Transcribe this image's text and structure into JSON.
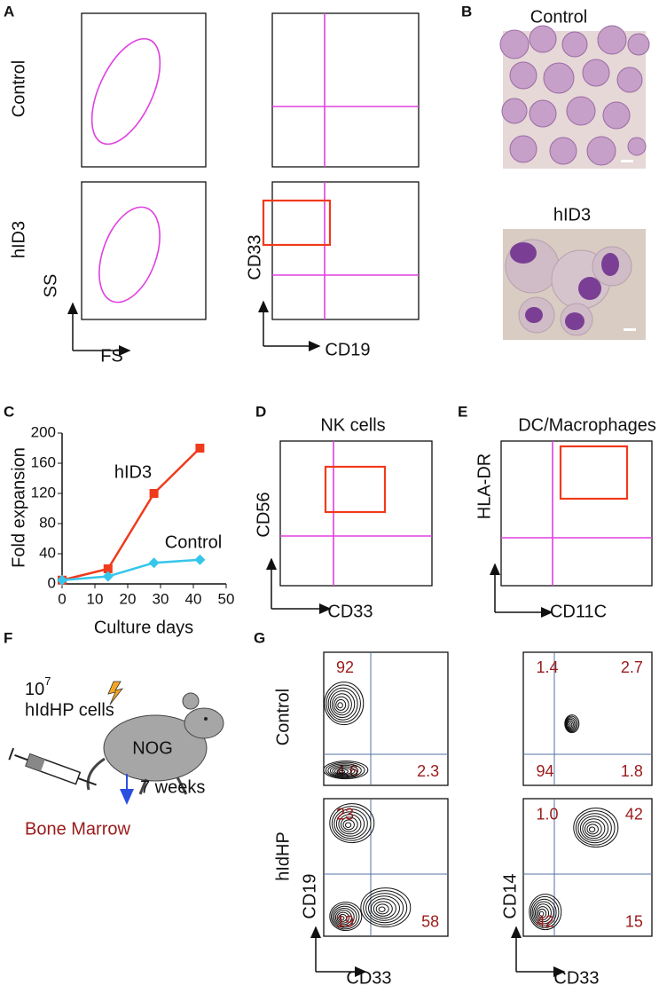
{
  "panel_a": {
    "label": "A",
    "rows": [
      "Control",
      "hID3"
    ],
    "plot_1": {
      "x_label": "FS",
      "y_label": "SS"
    },
    "plot_2": {
      "x_label": "CD19",
      "y_label": "CD33"
    }
  },
  "panel_b": {
    "label": "B",
    "images": [
      "Control",
      "hID3"
    ]
  },
  "panel_c": {
    "label": "C"
  },
  "chart_data": {
    "type": "line",
    "x_label": "Culture days",
    "y_label": "Fold expansion",
    "x": [
      0,
      14,
      28,
      42
    ],
    "series": [
      {
        "name": "hID3",
        "color": "#f03a1c",
        "marker": "square",
        "values": [
          5,
          20,
          120,
          180
        ]
      },
      {
        "name": "Control",
        "color": "#35c6ec",
        "marker": "diamond",
        "values": [
          5,
          10,
          28,
          32
        ]
      }
    ],
    "xlim": [
      0,
      50
    ],
    "xticks": [
      0,
      10,
      20,
      30,
      40,
      50
    ],
    "ylim": [
      0,
      200
    ],
    "yticks": [
      0,
      40,
      80,
      120,
      160,
      200
    ],
    "grid": false
  },
  "panel_d": {
    "label": "D",
    "title": "NK cells",
    "x_label": "CD33",
    "y_label": "CD56"
  },
  "panel_e": {
    "label": "E",
    "title": "DC/Macrophages",
    "x_label": "CD11C",
    "y_label": "HLA-DR"
  },
  "panel_f": {
    "label": "F",
    "dose": 10,
    "dose_exponent": 7,
    "cells": "hIdHP cells",
    "mouse": "NOG",
    "duration": "7 weeks",
    "tissue": "Bone Marrow"
  },
  "panel_g": {
    "label": "G",
    "rows": [
      "Control",
      "hIdHP"
    ],
    "plots": [
      {
        "x_label": "CD33",
        "y_label": "CD19"
      },
      {
        "x_label": "CD33",
        "y_label": "CD14"
      }
    ],
    "quadrants": [
      [
        {
          "UL": 92,
          "LL": 4.6,
          "LR": 2.3
        },
        {
          "UL": 1.4,
          "UR": 2.7,
          "LL": 94,
          "LR": 1.8
        }
      ],
      [
        {
          "UL": 23,
          "LL": 19,
          "LR": 58
        },
        {
          "UL": {
            "value": 1,
            "label": "1.0"
          },
          "UR": 42,
          "LL": 42,
          "LR": 15
        }
      ]
    ]
  }
}
